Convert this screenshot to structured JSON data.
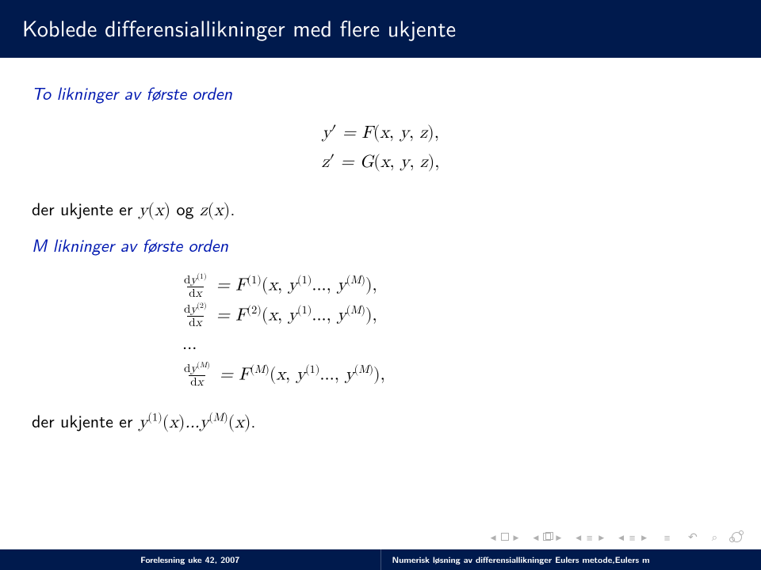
{
  "title": "Koblede differensiallikninger med flere ukjente",
  "sub1": "To likninger av første orden",
  "eq_two": {
    "l1": "y′ = F(x, y, z),",
    "l2": "z′ = G(x, y, z),"
  },
  "line_unknowns_two_pre": "der ukjente er ",
  "line_unknowns_two_math": "y(x) og z(x).",
  "sub2": "M likninger av første orden",
  "system": {
    "row1_num": "dy⁽¹⁾",
    "row1_den": "dx",
    "row1_rhs": "= F⁽¹⁾(x, y⁽¹⁾..., y⁽ᴹ⁾),",
    "row2_num": "dy⁽²⁾",
    "row2_den": "dx",
    "row2_rhs": "= F⁽²⁾(x, y⁽¹⁾..., y⁽ᴹ⁾),",
    "dots": "...",
    "rowM_num": "dy⁽ᴹ⁾",
    "rowM_den": "dx",
    "rowM_rhs": "= F⁽ᴹ⁾(x, y⁽¹⁾..., y⁽ᴹ⁾),"
  },
  "line_unknowns_M_pre": "der ukjente er ",
  "line_unknowns_M_math": "y⁽¹⁾(x)...y⁽ᴹ⁾(x).",
  "footer_left": "Forelesning uke 42, 2007",
  "footer_right": "Numerisk løsning av differensiallikninger Eulers metode,Eulers m",
  "colors": {
    "header_bg": "#001a4d",
    "header_fg": "#ffffff",
    "subhead": "#0018b0",
    "text": "#000000",
    "nav": "#b0b0b0",
    "background": "#ffffff"
  },
  "fontsize": {
    "title": 28,
    "body": 22,
    "footer": 11,
    "nav": 13
  }
}
